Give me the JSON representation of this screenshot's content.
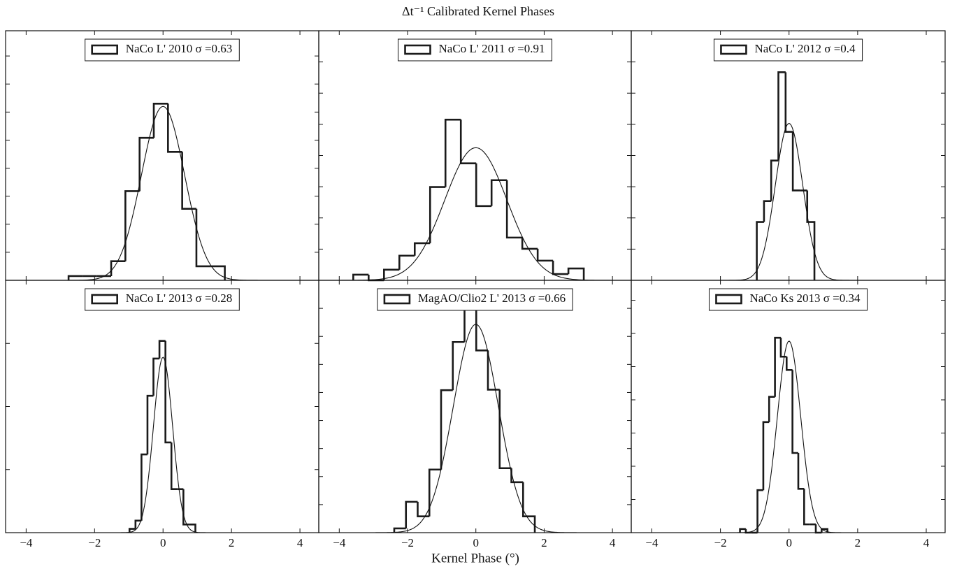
{
  "title": "Δt⁻¹ Calibrated Kernel Phases",
  "x_label": "Kernel Phase (°)",
  "chart_data": [
    {
      "type": "histogram",
      "legend": "upper center",
      "xlim": [
        -4.6,
        4.55
      ],
      "ylim": [
        0,
        8.9
      ],
      "xticks": [
        -4,
        -2,
        0,
        2,
        4
      ],
      "xtick_labels": false,
      "yticks": [
        0,
        1,
        2,
        3,
        4,
        5,
        6,
        7,
        8
      ],
      "ytick_labels": false,
      "bins": [
        -2.76,
        -2.345,
        -1.93,
        -1.515,
        -1.1,
        -0.685,
        -0.27,
        0.145,
        0.56,
        0.975,
        1.39,
        1.805
      ],
      "series": [
        {
          "name": "NaCo L' 2010 σ =0.63",
          "color": "#1a1a1a",
          "values": [
            0.15,
            0.15,
            0.15,
            0.68,
            3.18,
            5.08,
            6.3,
            4.58,
            2.55,
            0.5,
            0.5
          ]
        }
      ],
      "fit": {
        "mean": 0,
        "sigma": 0.63,
        "peak": 6.2
      }
    },
    {
      "type": "histogram",
      "legend": "upper center",
      "xlim": [
        -4.6,
        4.55
      ],
      "ylim": [
        0,
        8.0
      ],
      "xticks": [
        -4,
        -2,
        0,
        2,
        4
      ],
      "xtick_labels": false,
      "yticks": [
        0,
        1,
        2,
        3,
        4,
        5,
        6,
        7,
        8
      ],
      "ytick_labels": false,
      "bins": [
        -3.59,
        -3.14,
        -2.69,
        -2.24,
        -1.79,
        -1.34,
        -0.89,
        -0.44,
        0.01,
        0.46,
        0.91,
        1.36,
        1.81,
        2.26,
        2.71,
        3.16
      ],
      "series": [
        {
          "name": "NaCo L' 2011 σ =0.91",
          "color": "#1a1a1a",
          "values": [
            0.18,
            0,
            0.34,
            0.79,
            1.19,
            2.99,
            5.15,
            3.75,
            2.38,
            3.21,
            1.37,
            1.01,
            0.63,
            0.2,
            0.38
          ]
        }
      ],
      "fit": {
        "mean": 0,
        "sigma": 0.91,
        "peak": 4.25
      }
    },
    {
      "type": "histogram",
      "legend": "upper center",
      "xlim": [
        -4.6,
        4.55
      ],
      "ylim": [
        0,
        8.0
      ],
      "xticks": [
        -4,
        -2,
        0,
        2,
        4
      ],
      "xtick_labels": false,
      "yticks": [
        0,
        1,
        2,
        3,
        4,
        5,
        6,
        7,
        8
      ],
      "ytick_labels": false,
      "bins": [
        -0.94,
        -0.73,
        -0.52,
        -0.31,
        -0.1,
        0.11,
        0.32,
        0.53,
        0.74
      ],
      "series": [
        {
          "name": "NaCo L' 2012 σ =0.4",
          "color": "#1a1a1a",
          "values": [
            1.87,
            2.54,
            3.84,
            6.67,
            4.76,
            2.88,
            2.88,
            1.87
          ]
        }
      ],
      "fit": {
        "mean": 0,
        "sigma": 0.4,
        "peak": 5.03
      }
    },
    {
      "type": "histogram",
      "legend": "upper center",
      "xlim": [
        -4.6,
        4.55
      ],
      "ylim": [
        0,
        4.0
      ],
      "xticks": [
        {
          "value": -4,
          "label": "−4"
        },
        {
          "value": -2,
          "label": "−2"
        },
        0,
        2,
        4
      ],
      "xtick_labels": true,
      "yticks": [
        0,
        1,
        2,
        3,
        4
      ],
      "ytick_labels": false,
      "bins": [
        -0.98,
        -0.805,
        -0.63,
        -0.455,
        -0.28,
        -0.105,
        0.07,
        0.245,
        0.42,
        0.595,
        0.77,
        0.945
      ],
      "series": [
        {
          "name": "NaCo L' 2013 σ =0.28",
          "color": "#1a1a1a",
          "values": [
            0.06,
            0.19,
            1.24,
            2.17,
            2.76,
            3.04,
            1.43,
            0.69,
            0.69,
            0.13,
            0.13
          ]
        }
      ],
      "fit": {
        "mean": 0,
        "sigma": 0.28,
        "peak": 2.78
      }
    },
    {
      "type": "histogram",
      "legend": "upper center",
      "xlim": [
        -4.6,
        4.55
      ],
      "ylim": [
        0,
        9.0
      ],
      "xticks": [
        {
          "value": -4,
          "label": "−4"
        },
        {
          "value": -2,
          "label": "−2"
        },
        0,
        2,
        4
      ],
      "xtick_labels": true,
      "yticks": [
        0,
        1,
        2,
        3,
        4,
        5,
        6,
        7,
        8,
        9
      ],
      "ytick_labels": false,
      "bins": [
        -2.39,
        -2.047,
        -1.704,
        -1.361,
        -1.018,
        -0.675,
        -0.332,
        0.011,
        0.354,
        0.697,
        1.04,
        1.383,
        1.726
      ],
      "series": [
        {
          "name": "MagAO/Clio2 L' 2013 σ =0.66",
          "color": "#1a1a1a",
          "values": [
            0.15,
            1.1,
            0.58,
            2.25,
            5.08,
            6.8,
            8.03,
            6.5,
            5.1,
            2.3,
            1.8,
            0.58
          ]
        }
      ],
      "fit": {
        "mean": 0,
        "sigma": 0.66,
        "peak": 7.43
      }
    },
    {
      "type": "histogram",
      "legend": "upper center",
      "xlim": [
        -4.6,
        4.55
      ],
      "ylim": [
        0,
        7.6
      ],
      "xticks": [
        {
          "value": -4,
          "label": "−4"
        },
        {
          "value": -2,
          "label": "−2"
        },
        0,
        2,
        4
      ],
      "xtick_labels": true,
      "yticks": [
        0,
        1,
        2,
        3,
        4,
        5,
        6,
        7
      ],
      "ytick_labels": false,
      "bins": [
        -1.43,
        -1.26,
        -1.09,
        -0.92,
        -0.75,
        -0.58,
        -0.41,
        -0.24,
        -0.07,
        0.1,
        0.27,
        0.44,
        0.61,
        0.78,
        0.95,
        1.12
      ],
      "series": [
        {
          "name": "NaCo Ks 2013 σ =0.34",
          "color": "#1a1a1a",
          "values": [
            0.11,
            0,
            0,
            1.28,
            3.33,
            4.09,
            5.87,
            5.3,
            4.9,
            2.4,
            1.32,
            0.25,
            0.25,
            0,
            0.11
          ]
        }
      ],
      "fit": {
        "mean": 0,
        "sigma": 0.34,
        "peak": 5.77
      }
    }
  ]
}
